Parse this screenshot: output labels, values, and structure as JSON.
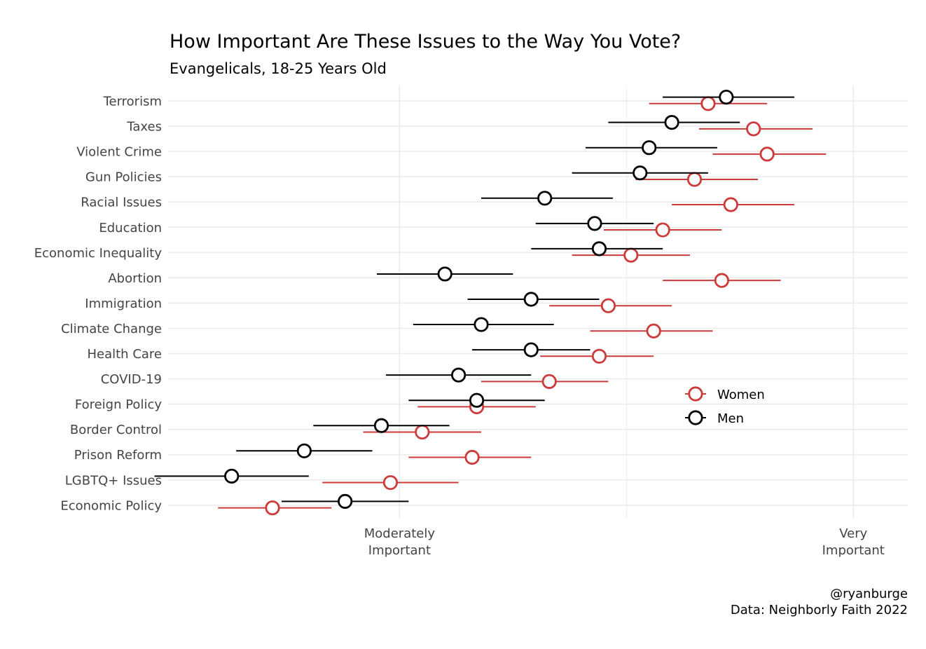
{
  "chart_data": {
    "type": "dot-errorbar",
    "title": "How Important Are These Issues to the Way You Vote?",
    "subtitle": "Evangelicals, 18-25 Years Old",
    "caption_line1": "@ryanburge",
    "caption_line2": "Data: Neighborly Faith 2022",
    "x_tick_labels": [
      {
        "value": 3,
        "label": [
          "Moderately",
          "Important"
        ]
      },
      {
        "value": 4,
        "label": [
          "Very",
          "Important"
        ]
      }
    ],
    "xlim": [
      2.49,
      4.12
    ],
    "grid": true,
    "legend_position": "right",
    "categories": [
      "Terrorism",
      "Taxes",
      "Violent Crime",
      "Gun Policies",
      "Racial Issues",
      "Education",
      "Economic Inequality",
      "Abortion",
      "Immigration",
      "Climate Change",
      "Health Care",
      "COVID-19",
      "Foreign Policy",
      "Border Control",
      "Prison Reform",
      "LGBTQ+ Issues",
      "Economic Policy"
    ],
    "series": [
      {
        "name": "Women",
        "color": "#cc3a3a",
        "mean": [
          3.68,
          3.78,
          3.81,
          3.65,
          3.73,
          3.58,
          3.51,
          3.71,
          3.46,
          3.56,
          3.44,
          3.33,
          3.17,
          3.05,
          3.16,
          2.98,
          2.72
        ],
        "lower": [
          3.55,
          3.66,
          3.69,
          3.52,
          3.6,
          3.45,
          3.38,
          3.58,
          3.33,
          3.42,
          3.31,
          3.18,
          3.04,
          2.92,
          3.02,
          2.83,
          2.6
        ],
        "upper": [
          3.81,
          3.91,
          3.94,
          3.79,
          3.87,
          3.71,
          3.64,
          3.84,
          3.6,
          3.69,
          3.56,
          3.46,
          3.3,
          3.18,
          3.29,
          3.13,
          2.85
        ]
      },
      {
        "name": "Men",
        "color": "#000000",
        "mean": [
          3.72,
          3.6,
          3.55,
          3.53,
          3.32,
          3.43,
          3.44,
          3.1,
          3.29,
          3.18,
          3.29,
          3.13,
          3.17,
          2.96,
          2.79,
          2.63,
          2.88
        ],
        "lower": [
          3.58,
          3.46,
          3.41,
          3.38,
          3.18,
          3.3,
          3.29,
          2.95,
          3.15,
          3.03,
          3.16,
          2.97,
          3.02,
          2.81,
          2.64,
          2.46,
          2.74
        ],
        "upper": [
          3.87,
          3.75,
          3.7,
          3.68,
          3.47,
          3.56,
          3.58,
          3.25,
          3.44,
          3.34,
          3.42,
          3.29,
          3.32,
          3.11,
          2.94,
          2.8,
          3.02
        ]
      }
    ]
  }
}
